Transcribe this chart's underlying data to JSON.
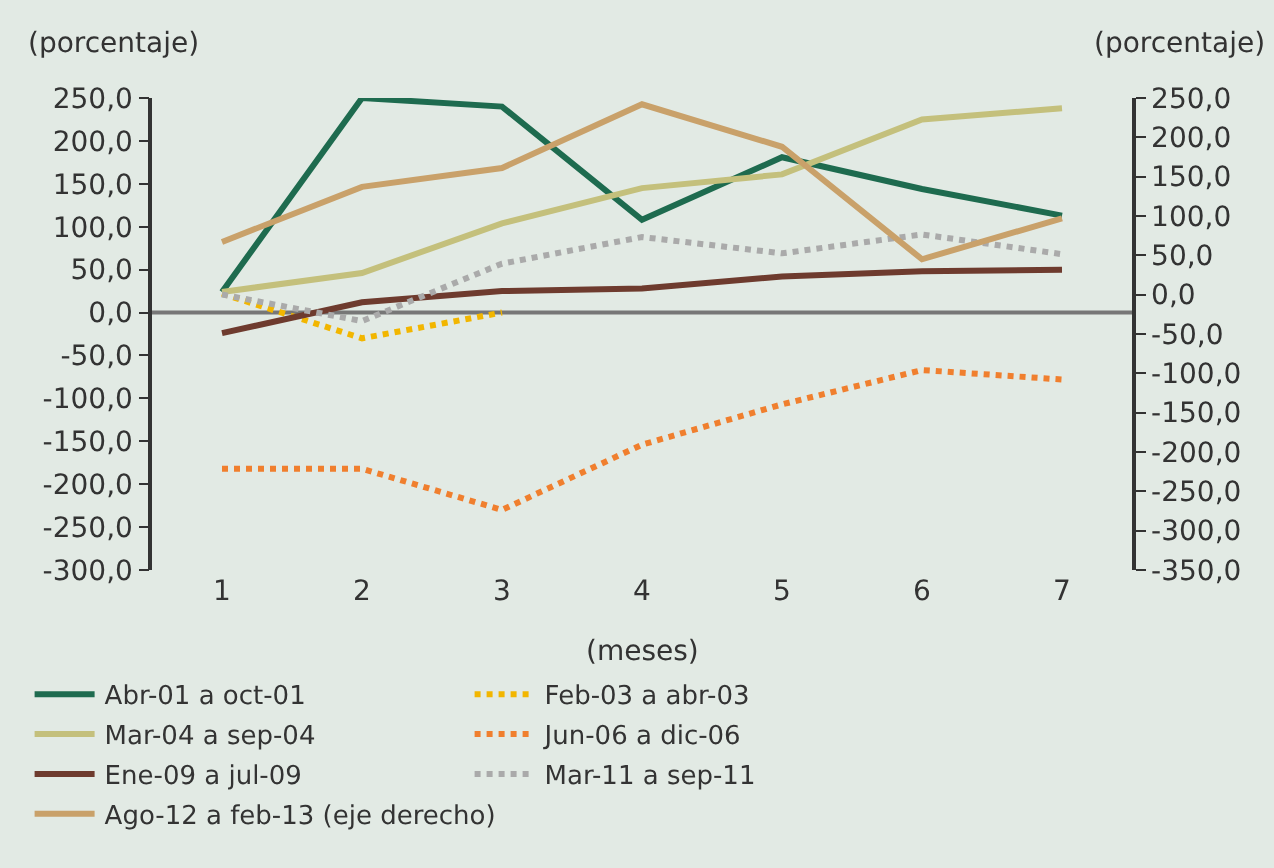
{
  "chart_data": {
    "type": "line",
    "ylabel": "(porcentaje)",
    "y2label": "(porcentaje)",
    "xlabel": "(meses)",
    "categories": [
      "1",
      "2",
      "3",
      "4",
      "5",
      "6",
      "7"
    ],
    "ylim": [
      -300,
      250
    ],
    "y2lim": [
      -350,
      250
    ],
    "yticks": [
      {
        "value": 250,
        "label": "250,0"
      },
      {
        "value": 200,
        "label": "200,0"
      },
      {
        "value": 150,
        "label": "150,0"
      },
      {
        "value": 100,
        "label": "100,0"
      },
      {
        "value": 50,
        "label": "50,0"
      },
      {
        "value": 0,
        "label": "0,0"
      },
      {
        "value": -50,
        "label": "-50,0"
      },
      {
        "value": -100,
        "label": "-100,0"
      },
      {
        "value": -150,
        "label": "-150,0"
      },
      {
        "value": -200,
        "label": "-200,0"
      },
      {
        "value": -250,
        "label": "-250,0"
      },
      {
        "value": -300,
        "label": "-300,0"
      }
    ],
    "y2ticks": [
      {
        "value": 250,
        "label": "250,0"
      },
      {
        "value": 200,
        "label": "200,0"
      },
      {
        "value": 150,
        "label": "150,0"
      },
      {
        "value": 100,
        "label": "100,0"
      },
      {
        "value": 50,
        "label": "50,0"
      },
      {
        "value": 0,
        "label": "0,0"
      },
      {
        "value": -50,
        "label": "-50,0"
      },
      {
        "value": -100,
        "label": "-100,0"
      },
      {
        "value": -150,
        "label": "-150,0"
      },
      {
        "value": -200,
        "label": "-200,0"
      },
      {
        "value": -250,
        "label": "-250,0"
      },
      {
        "value": -300,
        "label": "-300,0"
      },
      {
        "value": -350,
        "label": "-350,0"
      }
    ],
    "grid": false,
    "ref_lines": [
      {
        "axis": "y",
        "value": 0,
        "color": "#777777"
      }
    ],
    "legend": "bottom",
    "marker": "none",
    "series": [
      {
        "name": "Abr-01 a oct-01",
        "color": "#1e6b4f",
        "line_style": "solid",
        "values": [
          24,
          250,
          240,
          108,
          181,
          144,
          113
        ]
      },
      {
        "name": "Feb-03 a abr-03",
        "color": "#f2b600",
        "line_style": "dotted",
        "values": [
          22,
          -30,
          0,
          null,
          null,
          null,
          null
        ]
      },
      {
        "name": "Mar-04 a sep-04",
        "color": "#c4c07c",
        "line_style": "solid",
        "values": [
          24,
          46,
          104,
          145,
          161,
          225,
          238
        ]
      },
      {
        "name": "Jun-06 a dic-06",
        "color": "#f07f2e",
        "line_style": "dotted",
        "values": [
          -182,
          -182,
          -230,
          -154,
          -107,
          -67,
          -78
        ]
      },
      {
        "name": "Ene-09 a jul-09",
        "color": "#6e3b2e",
        "line_style": "solid",
        "values": [
          -24,
          12,
          25,
          28,
          42,
          48,
          50
        ]
      },
      {
        "name": "Mar-11 a sep-11",
        "color": "#aaaaaa",
        "line_style": "dotted",
        "values": [
          21,
          -10,
          57,
          88,
          69,
          91,
          68
        ]
      },
      {
        "name": "Ago-12 a feb-13 (eje derecho)",
        "color": "#c9a16a",
        "line_style": "solid",
        "axis": "y2",
        "values": [
          67,
          137,
          161,
          242,
          188,
          45,
          97
        ]
      }
    ]
  }
}
